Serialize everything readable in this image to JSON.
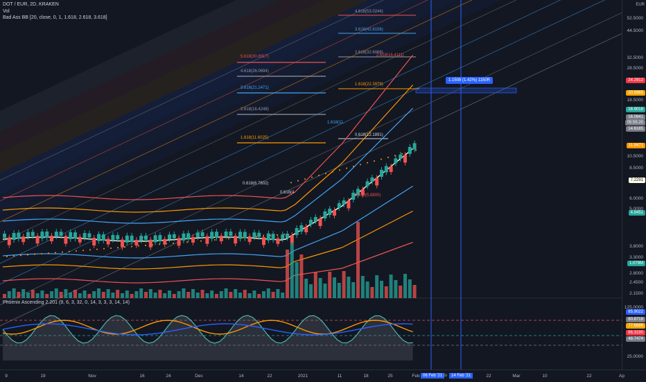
{
  "header": {
    "title": "DOT / EUR, 2D, KRAKEN",
    "vol_label": "Vol",
    "indicator": "Bad Ass BB [20, close, 0, 1, 1.618, 2.618, 3.618]",
    "oscillator": "Phoenix Ascending 2.201 (9, 6, 3, 32, 0, 14, 3, 3, 3, 14, 14)"
  },
  "currency": "EUR",
  "price_axis": [
    "52.5000",
    "44.5000",
    "32.5000",
    "28.5000",
    "18.5000",
    "10.5000",
    "8.5000",
    "6.0000",
    "5.0000",
    "3.8000",
    "3.3000",
    "2.8000",
    "2.4500",
    "2.1500"
  ],
  "osc_axis": [
    "125.0000",
    "25.0000"
  ],
  "price_badges": [
    {
      "text": "24.2912",
      "color": "#f23645"
    },
    {
      "text": "20.5965",
      "color": "#f7a600"
    },
    {
      "text": "16.9018",
      "color": "#26a69a"
    },
    {
      "text": "16.0841",
      "color": "#787b86"
    },
    {
      "text": "05:55:20",
      "color": "#787b86"
    },
    {
      "text": "14.6185",
      "color": "#787b86"
    },
    {
      "text": "11.9471",
      "color": "#ff9800"
    },
    {
      "text": "7.2291",
      "color": "#fffde7"
    },
    {
      "text": "4.9451",
      "color": "#26a69a"
    },
    {
      "text": "1.079M",
      "color": "#26a69a"
    }
  ],
  "osc_badges": [
    {
      "text": "85.9022",
      "color": "#2962ff"
    },
    {
      "text": "80.8718",
      "color": "#787b86"
    },
    {
      "text": "77.6686",
      "color": "#f7a600"
    },
    {
      "text": "66.3190",
      "color": "#f23645"
    },
    {
      "text": "48.7474",
      "color": "#787b86"
    }
  ],
  "x_axis": [
    "9",
    "19",
    "Nov",
    "16",
    "24",
    "Dec",
    "14",
    "22",
    "2021",
    "11",
    "18",
    "25",
    "Feb",
    "22",
    "Mar",
    "10",
    "22",
    "Ap"
  ],
  "x_badges": [
    "06 Feb '21",
    "14 Feb '21"
  ],
  "x_badge_sep": "to",
  "callout": "1.1508 (1.42%) 1150R",
  "fib_labels": [
    {
      "text": "5.618(30.8917)",
      "color": "#ef5350"
    },
    {
      "text": "4.618(26.0694)",
      "color": "#9598a1"
    },
    {
      "text": "3.618(21.2471)",
      "color": "#42a5f5"
    },
    {
      "text": "2.618(16.4248)",
      "color": "#9598a1"
    },
    {
      "text": "1.618(11.6025)",
      "color": "#ff9800"
    },
    {
      "text": "0.618(6.7802)",
      "color": "#d1d4dc"
    },
    {
      "text": "0.618(4",
      "color": "#d1d4dc"
    },
    {
      "text": "4.618(53.0244)",
      "color": "#9598a1"
    },
    {
      "text": "3.618(42.8156)",
      "color": "#42a5f5"
    },
    {
      "text": "2.618(32.6068)",
      "color": "#9598a1"
    },
    {
      "text": "2.618(16.4111)",
      "color": "#ef5350"
    },
    {
      "text": "1.618(22.3979)",
      "color": "#ff9800"
    },
    {
      "text": "1.618(11.",
      "color": "#42a5f5"
    },
    {
      "text": "0.618(12.1891)",
      "color": "#d1d4dc"
    },
    {
      "text": "0.618(5.8800)",
      "color": "#ef5350"
    }
  ],
  "colors": {
    "bg": "#131722",
    "up": "#26a69a",
    "down": "#ef5350",
    "accent": "#2962ff"
  }
}
